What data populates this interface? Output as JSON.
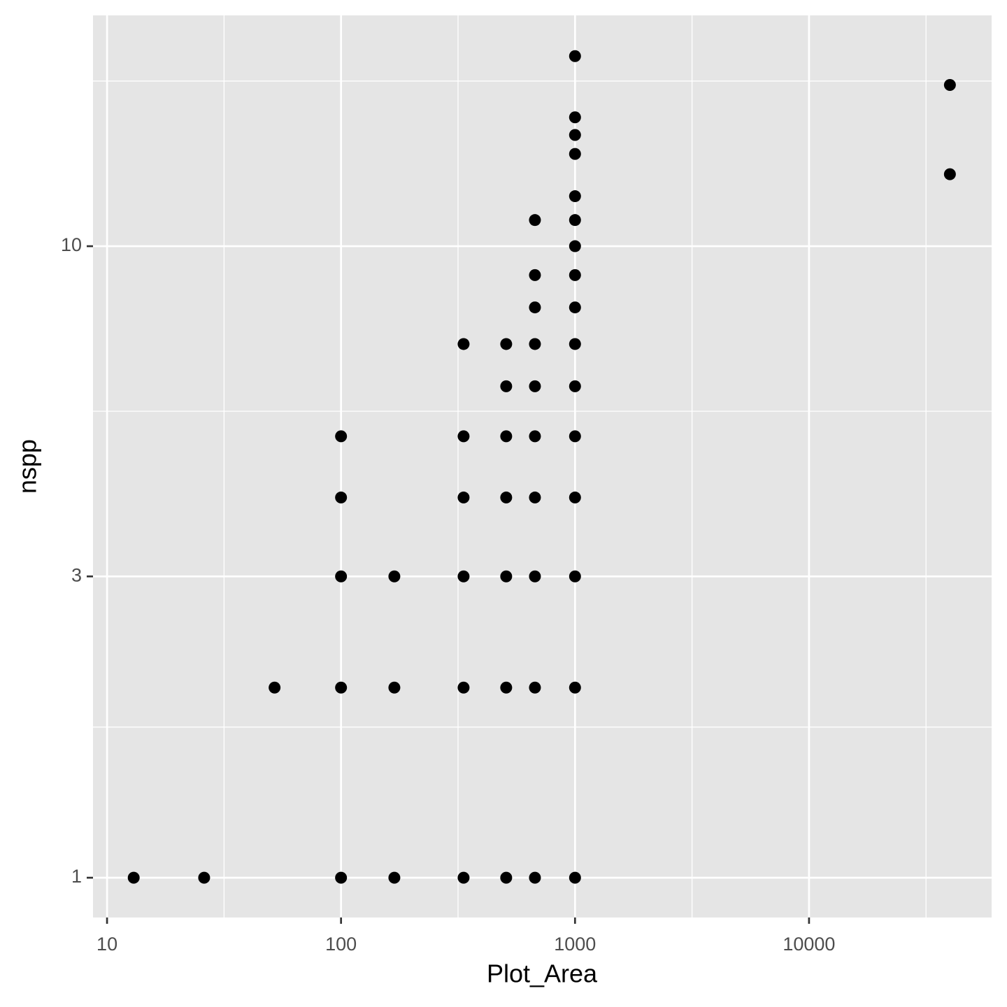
{
  "chart_data": {
    "type": "scatter",
    "x_label": "Plot_Area",
    "y_label": "nspp",
    "x": [
      13,
      26,
      100,
      169,
      334,
      508,
      674,
      1000,
      52,
      100,
      169,
      334,
      508,
      674,
      1000,
      100,
      169,
      334,
      508,
      674,
      1000,
      100,
      334,
      508,
      674,
      1000,
      100,
      334,
      508,
      674,
      1000,
      508,
      674,
      1000,
      334,
      508,
      674,
      1000,
      674,
      1000,
      674,
      1000,
      1000,
      674,
      1000,
      1000,
      1000,
      1000,
      1000,
      1000,
      40000,
      40000
    ],
    "y": [
      1,
      1,
      1,
      1,
      1,
      1,
      1,
      1,
      2,
      2,
      2,
      2,
      2,
      2,
      2,
      3,
      3,
      3,
      3,
      3,
      3,
      4,
      4,
      4,
      4,
      4,
      5,
      5,
      5,
      5,
      5,
      6,
      6,
      6,
      7,
      7,
      7,
      7,
      8,
      8,
      9,
      9,
      10,
      11,
      11,
      12,
      14,
      15,
      16,
      20,
      18,
      13
    ],
    "color": "#000000",
    "xscale": "log",
    "yscale": "log",
    "xlim": [
      8.71,
      60300
    ],
    "ylim": [
      0.865,
      23.2
    ],
    "xticks": [
      10,
      100,
      1000,
      10000
    ],
    "yticks": [
      1,
      3,
      10
    ],
    "grid": true
  }
}
